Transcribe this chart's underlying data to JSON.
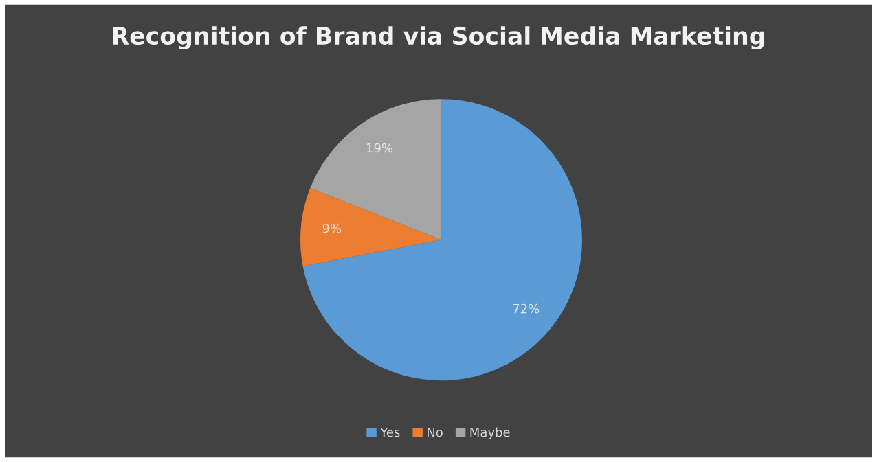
{
  "chart_data": {
    "type": "pie",
    "title": "Recognition of Brand via Social Media Marketing",
    "categories": [
      "Yes",
      "No",
      "Maybe"
    ],
    "values": [
      72,
      9,
      19
    ],
    "colors": [
      "#5b9bd5",
      "#ed7d31",
      "#a5a5a5"
    ],
    "value_labels": [
      "72%",
      "9%",
      "19%"
    ],
    "legend": "bottom"
  }
}
